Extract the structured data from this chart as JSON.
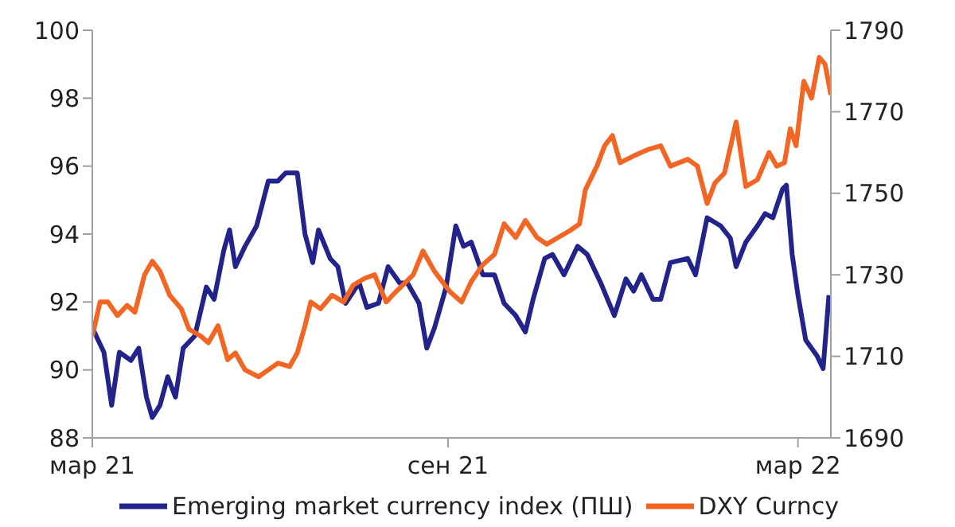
{
  "chart_data": {
    "type": "line",
    "xlim": [
      "2021-03-01",
      "2022-03-18"
    ],
    "xticks": [
      {
        "value": "2021-03-01",
        "label": "мар 21"
      },
      {
        "value": "2021-09-01",
        "label": "сен 21"
      },
      {
        "value": "2022-03-01",
        "label": "мар 22"
      }
    ],
    "ylim": [
      88,
      100
    ],
    "yticks": [
      88,
      90,
      92,
      94,
      96,
      98,
      100
    ],
    "y2lim": [
      1690,
      1790
    ],
    "y2ticks": [
      1690,
      1710,
      1730,
      1750,
      1770,
      1790
    ],
    "legend": "bottom",
    "marker": "none",
    "line_style": "solid",
    "series": [
      {
        "name": "Emerging market currency index (ПШ)",
        "color": "#23238c",
        "axis": "y2",
        "x": [
          "2021-03-01",
          "2021-03-07",
          "2021-03-11",
          "2021-03-15",
          "2021-03-21",
          "2021-03-25",
          "2021-03-29",
          "2021-04-01",
          "2021-04-05",
          "2021-04-09",
          "2021-04-13",
          "2021-04-17",
          "2021-04-23",
          "2021-04-29",
          "2021-05-03",
          "2021-05-08",
          "2021-05-11",
          "2021-05-14",
          "2021-05-19",
          "2021-05-25",
          "2021-05-31",
          "2021-06-05",
          "2021-06-09",
          "2021-06-15",
          "2021-06-19",
          "2021-06-23",
          "2021-06-26",
          "2021-07-02",
          "2021-07-06",
          "2021-07-10",
          "2021-07-17",
          "2021-07-21",
          "2021-07-27",
          "2021-08-01",
          "2021-08-07",
          "2021-08-11",
          "2021-08-17",
          "2021-08-21",
          "2021-08-25",
          "2021-08-31",
          "2021-09-05",
          "2021-09-09",
          "2021-09-13",
          "2021-09-19",
          "2021-09-25",
          "2021-09-30",
          "2021-10-06",
          "2021-10-11",
          "2021-10-15",
          "2021-10-21",
          "2021-10-25",
          "2021-10-31",
          "2021-11-07",
          "2021-11-12",
          "2021-11-19",
          "2021-11-26",
          "2021-12-02",
          "2021-12-06",
          "2021-12-10",
          "2021-12-16",
          "2021-12-20",
          "2021-12-25",
          "2022-01-03",
          "2022-01-07",
          "2022-01-13",
          "2022-01-20",
          "2022-01-25",
          "2022-01-28",
          "2022-02-02",
          "2022-02-08",
          "2022-02-12",
          "2022-02-16",
          "2022-02-21",
          "2022-02-23",
          "2022-02-26",
          "2022-03-01",
          "2022-03-05",
          "2022-03-11",
          "2022-03-14",
          "2022-03-17"
        ],
        "values": [
          1717,
          1711,
          1698,
          1711,
          1709,
          1712,
          1700,
          1695,
          1698,
          1705,
          1700,
          1712,
          1715,
          1727,
          1724,
          1736,
          1741,
          1732,
          1737,
          1742,
          1753,
          1753,
          1755,
          1755,
          1740,
          1733,
          1741,
          1734,
          1732,
          1723,
          1728,
          1722,
          1723,
          1732,
          1728,
          1728,
          1723,
          1712,
          1717,
          1727,
          1742,
          1737,
          1738,
          1730,
          1730,
          1723,
          1720,
          1716,
          1724,
          1734,
          1735,
          1730,
          1737,
          1735,
          1728,
          1720,
          1729,
          1726,
          1730,
          1724,
          1724,
          1733,
          1734,
          1730,
          1744,
          1742,
          1739,
          1732,
          1738,
          1742,
          1745,
          1744,
          1751,
          1752,
          1735,
          1725,
          1714,
          1710,
          1707,
          1725
        ]
      },
      {
        "name": "DXY Curncy",
        "color": "#f26522",
        "x": [
          "2021-03-01",
          "2021-03-05",
          "2021-03-09",
          "2021-03-14",
          "2021-03-19",
          "2021-03-23",
          "2021-03-28",
          "2021-04-01",
          "2021-04-05",
          "2021-04-10",
          "2021-04-16",
          "2021-04-20",
          "2021-04-26",
          "2021-04-30",
          "2021-05-05",
          "2021-05-10",
          "2021-05-14",
          "2021-05-19",
          "2021-05-26",
          "2021-05-31",
          "2021-06-05",
          "2021-06-11",
          "2021-06-15",
          "2021-06-19",
          "2021-06-22",
          "2021-06-27",
          "2021-07-03",
          "2021-07-09",
          "2021-07-14",
          "2021-07-20",
          "2021-07-25",
          "2021-07-31",
          "2021-08-05",
          "2021-08-14",
          "2021-08-19",
          "2021-08-25",
          "2021-09-02",
          "2021-09-08",
          "2021-09-13",
          "2021-09-19",
          "2021-09-25",
          "2021-09-30",
          "2021-10-06",
          "2021-10-11",
          "2021-10-17",
          "2021-10-22",
          "2021-10-28",
          "2021-11-03",
          "2021-11-08",
          "2021-11-11",
          "2021-11-17",
          "2021-11-21",
          "2021-11-25",
          "2021-11-29",
          "2021-12-06",
          "2021-12-14",
          "2021-12-20",
          "2021-12-25",
          "2022-01-03",
          "2022-01-08",
          "2022-01-13",
          "2022-01-17",
          "2022-01-22",
          "2022-01-28",
          "2022-02-02",
          "2022-02-08",
          "2022-02-14",
          "2022-02-18",
          "2022-02-22",
          "2022-02-25",
          "2022-02-28",
          "2022-03-04",
          "2022-03-08",
          "2022-03-12",
          "2022-03-15",
          "2022-03-18"
        ],
        "values": [
          91.0,
          92.0,
          92.0,
          91.6,
          91.9,
          91.7,
          92.8,
          93.2,
          92.9,
          92.2,
          91.8,
          91.2,
          91.0,
          90.8,
          91.3,
          90.3,
          90.5,
          90.0,
          89.8,
          90.0,
          90.2,
          90.1,
          90.5,
          91.3,
          92.0,
          91.8,
          92.2,
          92.0,
          92.5,
          92.7,
          92.8,
          92.0,
          92.3,
          92.8,
          93.5,
          92.9,
          92.3,
          92.0,
          92.6,
          93.1,
          93.4,
          94.3,
          93.9,
          94.4,
          93.9,
          93.7,
          93.9,
          94.1,
          94.3,
          95.3,
          96.0,
          96.6,
          96.9,
          96.1,
          96.3,
          96.5,
          96.6,
          96.0,
          96.2,
          96.0,
          94.9,
          95.5,
          95.8,
          97.3,
          95.4,
          95.6,
          96.4,
          96.0,
          96.1,
          97.1,
          96.6,
          98.5,
          98.0,
          99.2,
          99.0,
          98.1
        ]
      }
    ]
  }
}
